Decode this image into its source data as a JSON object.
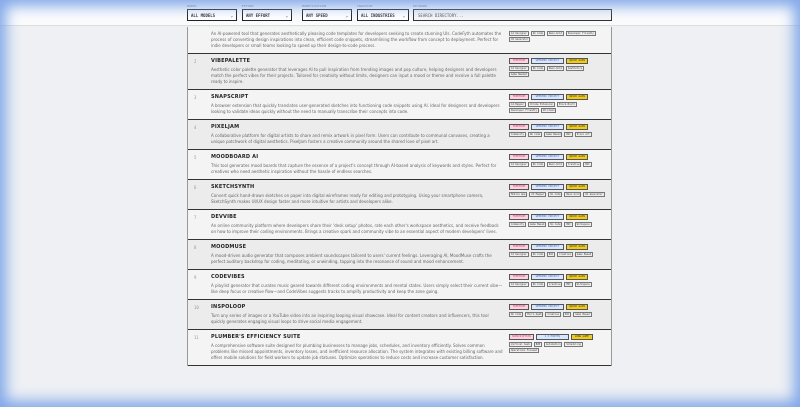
{
  "filters": {
    "model": {
      "label": "MODEL",
      "value": "ALL MODELS"
    },
    "effort": {
      "label": "EFFORT",
      "value": "ANY EFFORT"
    },
    "monetization": {
      "label": "MONETIZATION",
      "value": "ANY SPEED"
    },
    "industry": {
      "label": "INDUSTRY",
      "value": "ALL INDUSTRIES"
    },
    "keyword": {
      "label": "KEYWORD",
      "placeholder": "SEARCH DIRECTORY..."
    }
  },
  "items": [
    {
      "num": "",
      "title": "",
      "desc": "An AI-powered tool that generates aesthetically pleasing code templates for developers seeking to create stunning UIs. CodeFyth automates the process of converting design inspirations into clean, efficient code snippets, streamlining the workflow from concept to deployment. Perfect for indie developers or small teams looking to speed up their design-to-code process.",
      "badges": [],
      "tags": [
        "AI Designer",
        "No Code",
        "Neon-Sold",
        "Developer Friendly",
        "UI Generator"
      ]
    },
    {
      "num": "2",
      "title": "VIBEPALETTE",
      "desc": "Aesthetic color palette generator that leverages AI to pull inspiration from trending images and pop culture, helping designers and developers match the perfect vibes for their projects. Tailored for creativity without limits, designers can input a mood or theme and receive a full palette ready to inspire.",
      "badges": [
        "FREEMIUM",
        "WEEKEND PROJECT",
        "QUICK GAIN"
      ],
      "tags": [
        "AI Designer",
        "No Code",
        "Neon-Sold",
        "Aesthetics",
        "Game Needed"
      ]
    },
    {
      "num": "3",
      "title": "SNAPSCRIPT",
      "desc": "A browser extension that quickly translates user-generated sketches into functioning code snippets using AI. Ideal for designers and developers looking to validate ideas quickly without the need to manually transcribe their concepts into code.",
      "badges": [
        "FREEMIUM",
        "WEEKEND PROJECT",
        "QUICK GAIN"
      ],
      "tags": [
        "AI-Mapper",
        "Chrome Extension",
        "Block-Built",
        "Developer Friendly",
        "UX-Clean"
      ]
    },
    {
      "num": "4",
      "title": "PIXELJAM",
      "desc": "A collaborative platform for digital artists to share and remix artwork in pixel form. Users can contribute to communal canvases, creating a unique patchwork of digital aesthetics. PixelJam fosters a creative community around the shared love of pixel art.",
      "badges": [
        "FREEMIUM",
        "WEEKEND PROJECT",
        "QUICK GAIN"
      ],
      "tags": [
        "Community",
        "No Code",
        "Game Based",
        "B2C",
        "Pixel Art"
      ]
    },
    {
      "num": "5",
      "title": "MOODBOARD AI",
      "desc": "This tool generates mood boards that capture the essence of a project's concept through AI-based analysis of keywords and styles. Perfect for creatives who need aesthetic inspiration without the hassle of endless searches.",
      "badges": [
        "FREEMIUM",
        "WEEKEND PROJECT",
        "QUICK GAIN"
      ],
      "tags": [
        "AI Designer",
        "No Code",
        "Neon-Sold",
        "Creative",
        "B2C"
      ]
    },
    {
      "num": "6",
      "title": "SKETCHSYNTH",
      "desc": "Convert quick hand-drawn sketches on paper into digital wireframes ready for editing and prototyping. Using your smartphone camera, SketchSynth makes UI/UX design faster and more intuitive for artists and developers alike.",
      "badges": [
        "FREEMIUM",
        "WEEKEND PROJECT",
        "QUICK GAIN"
      ],
      "tags": [
        "Mobile App",
        "AI Mapper",
        "No Code",
        "Neon-Sold",
        "UI Generator"
      ]
    },
    {
      "num": "7",
      "title": "DEVVIBE",
      "desc": "An online community platform where developers share their 'desk setup' photos, rate each other's workspace aesthetics, and receive feedback on how to improve their coding environments. Brings a creative spark and community vibe to an essential aspect of modern developers' lives.",
      "badges": [
        "FREEMIUM",
        "WEEKEND PROJECT",
        "QUICK GAIN"
      ],
      "tags": [
        "Community",
        "Game Based",
        "No Code",
        "B2C",
        "Workspace"
      ]
    },
    {
      "num": "8",
      "title": "MOODMUSE",
      "desc": "A mood-driven audio generator that composes ambient soundscapes tailored to users' current feelings. Leveraging AI, MoodMuse crafts the perfect auditory backdrop for coding, meditating, or unwinding, tapping into the resonance of sound and mood enhancement.",
      "badges": [
        "FREEMIUM",
        "WEEKEND PROJECT",
        "QUICK GAIN"
      ],
      "tags": [
        "AI Designer",
        "No Code",
        "B2C",
        "Creative",
        "Game Based"
      ]
    },
    {
      "num": "9",
      "title": "CODEVIBES",
      "desc": "A playlist generator that curates music geared towards different coding environments and mental states. Users simply select their current vibe—like deep focus or creative flow—and CodeVibes suggests tracks to amplify productivity and keep the zone going.",
      "badges": [
        "FREEMIUM",
        "WEEKEND PROJECT",
        "QUICK GAIN"
      ],
      "tags": [
        "AI Designer",
        "No Code",
        "Creative",
        "B2C",
        "Workspace"
      ]
    },
    {
      "num": "10",
      "title": "INSPOLOOP",
      "desc": "Turn any series of images or a YouTube video into an inspiring looping visual showcase. Ideal for content creators and influencers, this tool quickly generates engaging visual loops to drive social media engagement.",
      "badges": [
        "FREEMIUM",
        "WEEKEND PROJECT",
        "QUICK GAIN"
      ],
      "tags": [
        "No Code",
        "Micro-SaaS",
        "Creative",
        "B2C",
        "Game Based"
      ]
    },
    {
      "num": "11",
      "title": "PLUMBER'S EFFICIENCY SUITE",
      "desc": "A comprehensive software suite designed for plumbing businesses to manage jobs, schedules, and inventory efficiently. Solves common problems like missed appointments, inventory losses, and inefficient resource allocation. The system integrates with existing billing software and offers mobile solutions for field workers to update job statuses. Optimize operations to reduce costs and increase customer satisfaction.",
      "badges": [
        "SUBSCRIPTION",
        "1-3 MONTHS",
        "LONG GAME"
      ],
      "tags": [
        "Vertical SaaS",
        "B2B",
        "Automation",
        "Scheduling",
        "Operations Focused"
      ]
    }
  ],
  "colors": {
    "freemium": "#fbd3df",
    "project": "#d8e6ff",
    "gain": "#f2cb14",
    "frame": "#7fa7e8"
  }
}
